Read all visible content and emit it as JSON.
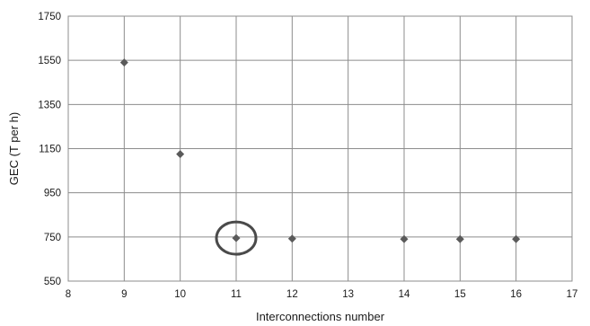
{
  "chart_data": {
    "type": "scatter",
    "title": "",
    "xlabel": "Interconnections number",
    "ylabel": "GEC (T per h)",
    "xlim": [
      8,
      17
    ],
    "ylim": [
      550,
      1750
    ],
    "x_ticks": [
      8,
      9,
      10,
      11,
      12,
      13,
      14,
      15,
      16,
      17
    ],
    "y_ticks": [
      550,
      750,
      950,
      1150,
      1350,
      1550,
      1750
    ],
    "grid": true,
    "legend": "none",
    "series": [
      {
        "marker": "diamond",
        "color": "#5a5a5a",
        "points": [
          {
            "x": 9,
            "y": 1540
          },
          {
            "x": 10,
            "y": 1125
          },
          {
            "x": 11,
            "y": 745
          },
          {
            "x": 12,
            "y": 742
          },
          {
            "x": 14,
            "y": 740
          },
          {
            "x": 15,
            "y": 740
          },
          {
            "x": 16,
            "y": 740
          }
        ]
      }
    ],
    "annotations": [
      {
        "type": "circle",
        "x": 11,
        "y": 745,
        "color": "#4a4a4a"
      }
    ]
  }
}
